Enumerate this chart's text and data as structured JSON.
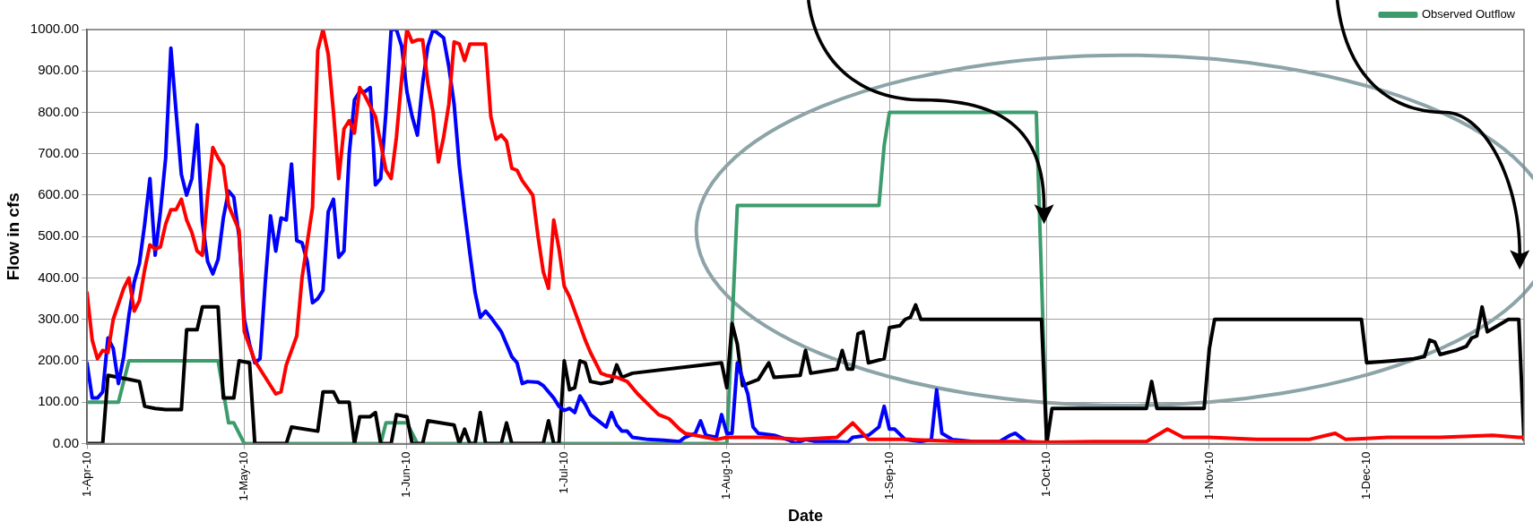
{
  "chart_data": {
    "type": "line",
    "xlabel": "Date",
    "ylabel": "Flow in cfs",
    "xlim": [
      "2010-04-01",
      "2010-12-31"
    ],
    "xticks": [
      {
        "value": "2010-04-01",
        "label": "1-Apr-10"
      },
      {
        "value": "2010-05-01",
        "label": "1-May-10"
      },
      {
        "value": "2010-06-01",
        "label": "1-Jun-10"
      },
      {
        "value": "2010-07-01",
        "label": "1-Jul-10"
      },
      {
        "value": "2010-08-01",
        "label": "1-Aug-10"
      },
      {
        "value": "2010-09-01",
        "label": "1-Sep-10"
      },
      {
        "value": "2010-10-01",
        "label": "1-Oct-10"
      },
      {
        "value": "2010-11-01",
        "label": "1-Nov-10"
      },
      {
        "value": "2010-12-01",
        "label": "1-Dec-10"
      }
    ],
    "ylim": [
      0,
      1000
    ],
    "yticks": [
      {
        "value": 0,
        "label": "0.00"
      },
      {
        "value": 100,
        "label": "100.00"
      },
      {
        "value": 200,
        "label": "200.00"
      },
      {
        "value": 300,
        "label": "300.00"
      },
      {
        "value": 400,
        "label": "400.00"
      },
      {
        "value": 500,
        "label": "500.00"
      },
      {
        "value": 600,
        "label": "600.00"
      },
      {
        "value": 700,
        "label": "700.00"
      },
      {
        "value": 800,
        "label": "800.00"
      },
      {
        "value": 900,
        "label": "900.00"
      },
      {
        "value": 1000,
        "label": "1000.00"
      }
    ],
    "grid": true,
    "legend": "top right",
    "marker": "none",
    "line_style": "solid",
    "series": [
      {
        "color": "#ff0000",
        "x": [
          "2010-04-01",
          "2010-04-02",
          "2010-04-03",
          "2010-04-04",
          "2010-04-05",
          "2010-04-06",
          "2010-04-08",
          "2010-04-09",
          "2010-04-10",
          "2010-04-11",
          "2010-04-12",
          "2010-04-13",
          "2010-04-14",
          "2010-04-15",
          "2010-04-16",
          "2010-04-17",
          "2010-04-18",
          "2010-04-19",
          "2010-04-20",
          "2010-04-21",
          "2010-04-22",
          "2010-04-23",
          "2010-04-24",
          "2010-04-25",
          "2010-04-26",
          "2010-04-27",
          "2010-04-28",
          "2010-04-29",
          "2010-04-30",
          "2010-05-01",
          "2010-05-03",
          "2010-05-05",
          "2010-05-07",
          "2010-05-08",
          "2010-05-09",
          "2010-05-11",
          "2010-05-12",
          "2010-05-14",
          "2010-05-15",
          "2010-05-16",
          "2010-05-17",
          "2010-05-18",
          "2010-05-19",
          "2010-05-20",
          "2010-05-21",
          "2010-05-22",
          "2010-05-23",
          "2010-05-24",
          "2010-05-26",
          "2010-05-27",
          "2010-05-28",
          "2010-05-29",
          "2010-05-30",
          "2010-05-31",
          "2010-06-01",
          "2010-06-02",
          "2010-06-03",
          "2010-06-04",
          "2010-06-05",
          "2010-06-06",
          "2010-06-07",
          "2010-06-08",
          "2010-06-09",
          "2010-06-10",
          "2010-06-11",
          "2010-06-12",
          "2010-06-13",
          "2010-06-16",
          "2010-06-17",
          "2010-06-18",
          "2010-06-19",
          "2010-06-20",
          "2010-06-21",
          "2010-06-22",
          "2010-06-23",
          "2010-06-25",
          "2010-06-26",
          "2010-06-27",
          "2010-06-28",
          "2010-06-29",
          "2010-06-30",
          "2010-07-01",
          "2010-07-02",
          "2010-07-04",
          "2010-07-05",
          "2010-07-06",
          "2010-07-08",
          "2010-07-09",
          "2010-07-11",
          "2010-07-13",
          "2010-07-15",
          "2010-07-17",
          "2010-07-19",
          "2010-07-21",
          "2010-07-23",
          "2010-07-24",
          "2010-07-26",
          "2010-07-28",
          "2010-07-30",
          "2010-08-01",
          "2010-08-08",
          "2010-08-15",
          "2010-08-22",
          "2010-08-25",
          "2010-08-28",
          "2010-09-05",
          "2010-09-15",
          "2010-09-25",
          "2010-10-01",
          "2010-10-10",
          "2010-10-20",
          "2010-10-24",
          "2010-10-27",
          "2010-11-01",
          "2010-11-10",
          "2010-11-20",
          "2010-11-25",
          "2010-11-27",
          "2010-12-05",
          "2010-12-15",
          "2010-12-25",
          "2010-12-30",
          "2010-12-31"
        ],
        "values": [
          365,
          250,
          205,
          225,
          220,
          300,
          375,
          400,
          320,
          345,
          420,
          480,
          470,
          475,
          530,
          565,
          565,
          590,
          540,
          510,
          465,
          455,
          600,
          715,
          690,
          670,
          575,
          545,
          515,
          270,
          200,
          160,
          120,
          125,
          190,
          260,
          400,
          570,
          950,
          1000,
          940,
          800,
          640,
          760,
          780,
          750,
          860,
          840,
          790,
          725,
          660,
          640,
          740,
          880,
          1000,
          970,
          975,
          975,
          870,
          800,
          680,
          740,
          820,
          970,
          965,
          925,
          965,
          965,
          790,
          735,
          745,
          730,
          665,
          660,
          635,
          600,
          500,
          415,
          375,
          540,
          470,
          380,
          355,
          285,
          250,
          220,
          170,
          165,
          160,
          150,
          120,
          95,
          70,
          60,
          35,
          25,
          20,
          15,
          10,
          15,
          15,
          10,
          15,
          50,
          10,
          10,
          5,
          5,
          3,
          5,
          5,
          35,
          15,
          15,
          10,
          10,
          25,
          10,
          15,
          15,
          20,
          15,
          15
        ]
      },
      {
        "color": "#0000ff",
        "x": [
          "2010-04-01",
          "2010-04-02",
          "2010-04-03",
          "2010-04-04",
          "2010-04-05",
          "2010-04-06",
          "2010-04-07",
          "2010-04-08",
          "2010-04-09",
          "2010-04-10",
          "2010-04-11",
          "2010-04-12",
          "2010-04-13",
          "2010-04-14",
          "2010-04-15",
          "2010-04-16",
          "2010-04-17",
          "2010-04-18",
          "2010-04-19",
          "2010-04-20",
          "2010-04-21",
          "2010-04-22",
          "2010-04-23",
          "2010-04-24",
          "2010-04-25",
          "2010-04-26",
          "2010-04-27",
          "2010-04-28",
          "2010-04-29",
          "2010-04-30",
          "2010-05-01",
          "2010-05-02",
          "2010-05-03",
          "2010-05-04",
          "2010-05-05",
          "2010-05-06",
          "2010-05-07",
          "2010-05-08",
          "2010-05-09",
          "2010-05-10",
          "2010-05-11",
          "2010-05-12",
          "2010-05-13",
          "2010-05-14",
          "2010-05-15",
          "2010-05-16",
          "2010-05-17",
          "2010-05-18",
          "2010-05-19",
          "2010-05-20",
          "2010-05-21",
          "2010-05-22",
          "2010-05-23",
          "2010-05-24",
          "2010-05-25",
          "2010-05-26",
          "2010-05-27",
          "2010-05-28",
          "2010-05-29",
          "2010-05-30",
          "2010-05-31",
          "2010-06-01",
          "2010-06-02",
          "2010-06-03",
          "2010-06-04",
          "2010-06-05",
          "2010-06-06",
          "2010-06-07",
          "2010-06-08",
          "2010-06-09",
          "2010-06-10",
          "2010-06-11",
          "2010-06-12",
          "2010-06-13",
          "2010-06-14",
          "2010-06-15",
          "2010-06-16",
          "2010-06-17",
          "2010-06-19",
          "2010-06-20",
          "2010-06-21",
          "2010-06-22",
          "2010-06-23",
          "2010-06-24",
          "2010-06-26",
          "2010-06-27",
          "2010-06-29",
          "2010-06-30",
          "2010-07-01",
          "2010-07-02",
          "2010-07-03",
          "2010-07-04",
          "2010-07-05",
          "2010-07-06",
          "2010-07-08",
          "2010-07-09",
          "2010-07-10",
          "2010-07-11",
          "2010-07-12",
          "2010-07-13",
          "2010-07-14",
          "2010-07-17",
          "2010-07-20",
          "2010-07-23",
          "2010-07-24",
          "2010-07-26",
          "2010-07-27",
          "2010-07-28",
          "2010-07-30",
          "2010-07-31",
          "2010-08-01",
          "2010-08-02",
          "2010-08-03",
          "2010-08-05",
          "2010-08-06",
          "2010-08-07",
          "2010-08-10",
          "2010-08-13",
          "2010-08-14",
          "2010-08-16",
          "2010-08-18",
          "2010-08-22",
          "2010-08-24",
          "2010-08-25",
          "2010-08-28",
          "2010-08-30",
          "2010-08-31",
          "2010-09-01",
          "2010-09-02",
          "2010-09-04",
          "2010-09-07",
          "2010-09-09",
          "2010-09-10",
          "2010-09-11",
          "2010-09-13",
          "2010-09-17",
          "2010-09-22",
          "2010-09-24",
          "2010-09-25",
          "2010-09-27",
          "2010-10-01"
        ],
        "values": [
          195,
          110,
          110,
          125,
          255,
          230,
          145,
          210,
          310,
          390,
          435,
          530,
          640,
          455,
          560,
          690,
          955,
          800,
          650,
          600,
          640,
          770,
          535,
          440,
          410,
          445,
          545,
          610,
          595,
          500,
          300,
          240,
          195,
          205,
          390,
          550,
          465,
          545,
          540,
          675,
          490,
          485,
          440,
          340,
          350,
          370,
          560,
          590,
          450,
          465,
          700,
          830,
          850,
          850,
          860,
          625,
          640,
          800,
          1000,
          1000,
          960,
          850,
          790,
          745,
          870,
          960,
          1000,
          990,
          980,
          910,
          820,
          670,
          560,
          460,
          365,
          305,
          320,
          305,
          270,
          240,
          210,
          195,
          145,
          150,
          148,
          140,
          110,
          90,
          80,
          85,
          75,
          115,
          95,
          70,
          50,
          40,
          75,
          45,
          30,
          30,
          15,
          10,
          8,
          5,
          15,
          25,
          55,
          20,
          15,
          70,
          25,
          25,
          195,
          120,
          40,
          25,
          20,
          8,
          0,
          10,
          5,
          5,
          3,
          15,
          20,
          40,
          90,
          35,
          35,
          10,
          5,
          10,
          130,
          25,
          10,
          5,
          5,
          20,
          25,
          5,
          0
        ]
      },
      {
        "color": "#000000",
        "x": [
          "2010-04-01",
          "2010-04-04",
          "2010-04-05",
          "2010-04-07",
          "2010-04-09",
          "2010-04-11",
          "2010-04-12",
          "2010-04-14",
          "2010-04-16",
          "2010-04-19",
          "2010-04-20",
          "2010-04-22",
          "2010-04-23",
          "2010-04-26",
          "2010-04-27",
          "2010-04-29",
          "2010-04-30",
          "2010-05-02",
          "2010-05-03",
          "2010-05-09",
          "2010-05-10",
          "2010-05-15",
          "2010-05-16",
          "2010-05-18",
          "2010-05-19",
          "2010-05-21",
          "2010-05-22",
          "2010-05-23",
          "2010-05-25",
          "2010-05-26",
          "2010-05-27",
          "2010-05-29",
          "2010-05-30",
          "2010-06-01",
          "2010-06-02",
          "2010-06-04",
          "2010-06-05",
          "2010-06-10",
          "2010-06-11",
          "2010-06-12",
          "2010-06-13",
          "2010-06-14",
          "2010-06-15",
          "2010-06-16",
          "2010-06-19",
          "2010-06-20",
          "2010-06-21",
          "2010-06-27",
          "2010-06-28",
          "2010-06-29",
          "2010-06-30",
          "2010-07-01",
          "2010-07-02",
          "2010-07-03",
          "2010-07-04",
          "2010-07-05",
          "2010-07-06",
          "2010-07-08",
          "2010-07-10",
          "2010-07-11",
          "2010-07-12",
          "2010-07-14",
          "2010-07-31",
          "2010-08-01",
          "2010-08-02",
          "2010-08-03",
          "2010-08-04",
          "2010-08-07",
          "2010-08-09",
          "2010-08-10",
          "2010-08-15",
          "2010-08-16",
          "2010-08-17",
          "2010-08-22",
          "2010-08-23",
          "2010-08-24",
          "2010-08-25",
          "2010-08-26",
          "2010-08-27",
          "2010-08-28",
          "2010-08-31",
          "2010-09-01",
          "2010-09-03",
          "2010-09-04",
          "2010-09-05",
          "2010-09-06",
          "2010-09-07",
          "2010-09-30",
          "2010-10-01",
          "2010-10-02",
          "2010-10-20",
          "2010-10-21",
          "2010-10-22",
          "2010-10-31",
          "2010-11-01",
          "2010-11-02",
          "2010-11-30",
          "2010-12-01",
          "2010-12-06",
          "2010-12-10",
          "2010-12-12",
          "2010-12-13",
          "2010-12-14",
          "2010-12-15",
          "2010-12-18",
          "2010-12-20",
          "2010-12-21",
          "2010-12-22",
          "2010-12-23",
          "2010-12-24",
          "2010-12-26",
          "2010-12-28",
          "2010-12-30",
          "2010-12-31"
        ],
        "values": [
          0,
          0,
          165,
          160,
          155,
          150,
          90,
          85,
          82,
          82,
          275,
          275,
          330,
          330,
          110,
          110,
          200,
          195,
          0,
          0,
          40,
          30,
          125,
          125,
          100,
          100,
          0,
          65,
          65,
          75,
          0,
          0,
          70,
          65,
          0,
          0,
          55,
          45,
          0,
          35,
          0,
          0,
          75,
          0,
          0,
          50,
          0,
          0,
          55,
          0,
          0,
          200,
          130,
          135,
          200,
          195,
          150,
          145,
          150,
          190,
          160,
          170,
          195,
          135,
          290,
          240,
          140,
          155,
          195,
          160,
          165,
          225,
          170,
          180,
          225,
          180,
          180,
          265,
          270,
          195,
          205,
          280,
          285,
          300,
          305,
          335,
          300,
          300,
          0,
          85,
          85,
          150,
          85,
          85,
          230,
          300,
          300,
          195,
          200,
          205,
          210,
          250,
          245,
          215,
          225,
          235,
          255,
          260,
          330,
          270,
          285,
          300,
          300,
          10
        ]
      },
      {
        "name": "Observed Outflow",
        "color": "#3c9c6c",
        "x": [
          "2010-04-01",
          "2010-04-07",
          "2010-04-09",
          "2010-04-26",
          "2010-04-28",
          "2010-04-29",
          "2010-05-01",
          "2010-05-27",
          "2010-05-28",
          "2010-06-01",
          "2010-06-03",
          "2010-08-01",
          "2010-08-03",
          "2010-08-30",
          "2010-08-31",
          "2010-09-01",
          "2010-09-29",
          "2010-10-01",
          "2010-10-04"
        ],
        "values": [
          100,
          100,
          200,
          200,
          50,
          50,
          0,
          0,
          50,
          50,
          0,
          0,
          575,
          575,
          720,
          800,
          800,
          0,
          0
        ]
      }
    ]
  }
}
